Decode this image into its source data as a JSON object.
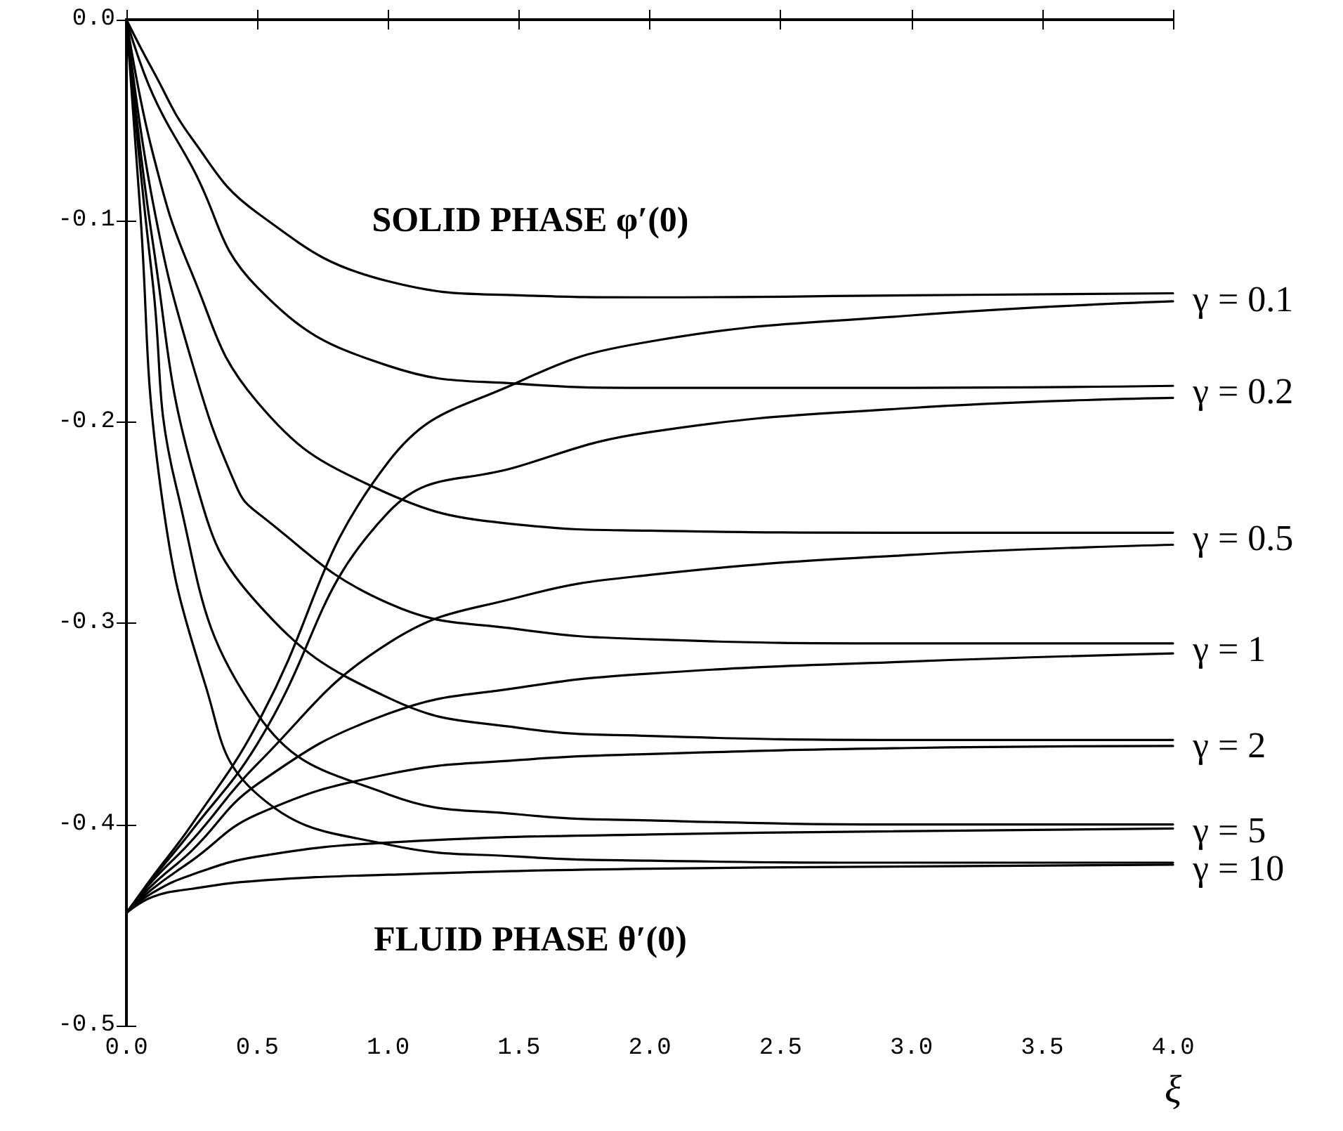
{
  "chart_data": {
    "type": "line",
    "xlabel": "ξ",
    "annotations": [
      "SOLID PHASE φ′(0)",
      "FLUID PHASE θ′(0)"
    ],
    "xlim": [
      0,
      4
    ],
    "ylim": [
      -0.5,
      0
    ],
    "xticks": [
      {
        "value": 0,
        "label": "0.0"
      },
      {
        "value": 0.5,
        "label": "0.5"
      },
      {
        "value": 1,
        "label": "1.0"
      },
      {
        "value": 1.5,
        "label": "1.5"
      },
      {
        "value": 2,
        "label": "2.0"
      },
      {
        "value": 2.5,
        "label": "2.5"
      },
      {
        "value": 3,
        "label": "3.0"
      },
      {
        "value": 3.5,
        "label": "3.5"
      },
      {
        "value": 4,
        "label": "4.0"
      }
    ],
    "yticks": [
      {
        "value": -0.5,
        "label": "-0.5"
      },
      {
        "value": -0.4,
        "label": "-0.4"
      },
      {
        "value": -0.3,
        "label": "-0.3"
      },
      {
        "value": -0.2,
        "label": "-0.2"
      },
      {
        "value": -0.1,
        "label": "-0.1"
      },
      {
        "value": 0,
        "label": "0.0"
      }
    ],
    "marker": "none",
    "line_style": "solid",
    "series": [
      {
        "name": "γ = 0.1",
        "color": "#000000",
        "x": [
          0,
          0.1,
          0.25,
          0.5,
          1,
          1.5,
          2,
          3,
          4
        ],
        "values": [
          0,
          -0.025,
          -0.059,
          -0.096,
          -0.13,
          -0.137,
          -0.138,
          -0.137,
          -0.136
        ]
      },
      {
        "name": "γ = 0.2",
        "color": "#000000",
        "x": [
          0,
          0.1,
          0.25,
          0.5,
          1,
          1.5,
          2,
          3,
          4
        ],
        "values": [
          0,
          -0.037,
          -0.073,
          -0.133,
          -0.172,
          -0.181,
          -0.183,
          -0.183,
          -0.182
        ]
      },
      {
        "name": "γ = 0.5",
        "color": "#000000",
        "x": [
          0,
          0.1,
          0.25,
          0.5,
          0.94,
          1.5,
          2,
          3,
          4
        ],
        "values": [
          0,
          -0.066,
          -0.126,
          -0.19,
          -0.232,
          -0.251,
          -0.254,
          -0.255,
          -0.255
        ]
      },
      {
        "name": "γ = 1",
        "color": "#000000",
        "x": [
          0,
          0.1,
          0.25,
          0.42,
          0.5,
          1,
          1.5,
          2,
          3,
          4
        ],
        "values": [
          0,
          -0.09,
          -0.17,
          -0.232,
          -0.245,
          -0.29,
          -0.303,
          -0.308,
          -0.31,
          -0.31
        ]
      },
      {
        "name": "γ = 2",
        "color": "#000000",
        "x": [
          0,
          0.1,
          0.27,
          0.5,
          1,
          1.5,
          2,
          3,
          4
        ],
        "values": [
          0,
          -0.11,
          -0.232,
          -0.29,
          -0.337,
          -0.352,
          -0.356,
          -0.358,
          -0.358
        ]
      },
      {
        "name": "γ = 5",
        "color": "#000000",
        "x": [
          0,
          0.05,
          0.1,
          0.19,
          0.5,
          1,
          1.5,
          2,
          3,
          4
        ],
        "values": [
          0,
          -0.07,
          -0.13,
          -0.232,
          -0.345,
          -0.385,
          -0.395,
          -0.398,
          -0.4,
          -0.4
        ]
      },
      {
        "name": "γ = 10",
        "color": "#000000",
        "x": [
          0,
          0.05,
          0.13,
          0.3,
          0.5,
          1,
          1.5,
          2,
          3,
          4
        ],
        "values": [
          0,
          -0.09,
          -0.232,
          -0.33,
          -0.385,
          -0.41,
          -0.416,
          -0.418,
          -0.419,
          -0.419
        ]
      },
      {
        "color": "#000000",
        "x": [
          0,
          0.1,
          0.25,
          0.5,
          1,
          1.5,
          2,
          3,
          4
        ],
        "values": [
          -0.444,
          -0.426,
          -0.4,
          -0.35,
          -0.22,
          -0.18,
          -0.16,
          -0.147,
          -0.14
        ]
      },
      {
        "color": "#000000",
        "x": [
          0,
          0.1,
          0.25,
          0.5,
          1,
          1.5,
          2,
          3,
          4
        ],
        "values": [
          -0.444,
          -0.427,
          -0.403,
          -0.36,
          -0.245,
          -0.222,
          -0.205,
          -0.193,
          -0.188
        ]
      },
      {
        "color": "#000000",
        "x": [
          0,
          0.1,
          0.25,
          0.5,
          1,
          1.5,
          2,
          3,
          4
        ],
        "values": [
          -0.444,
          -0.428,
          -0.408,
          -0.37,
          -0.31,
          -0.287,
          -0.276,
          -0.266,
          -0.261
        ]
      },
      {
        "color": "#000000",
        "x": [
          0,
          0.1,
          0.25,
          0.5,
          1,
          1.5,
          2,
          3,
          4
        ],
        "values": [
          -0.444,
          -0.43,
          -0.413,
          -0.38,
          -0.345,
          -0.332,
          -0.325,
          -0.319,
          -0.315
        ]
      },
      {
        "color": "#000000",
        "x": [
          0,
          0.1,
          0.25,
          0.5,
          1,
          1.5,
          2,
          3,
          4
        ],
        "values": [
          -0.444,
          -0.432,
          -0.418,
          -0.395,
          -0.375,
          -0.368,
          -0.365,
          -0.362,
          -0.361
        ]
      },
      {
        "color": "#000000",
        "x": [
          0,
          0.1,
          0.25,
          0.5,
          1,
          2,
          4
        ],
        "values": [
          -0.444,
          -0.434,
          -0.425,
          -0.416,
          -0.409,
          -0.405,
          -0.402
        ]
      },
      {
        "color": "#000000",
        "x": [
          0,
          0.1,
          0.25,
          0.5,
          1,
          2,
          4
        ],
        "values": [
          -0.444,
          -0.436,
          -0.432,
          -0.428,
          -0.425,
          -0.422,
          -0.42
        ]
      }
    ]
  }
}
